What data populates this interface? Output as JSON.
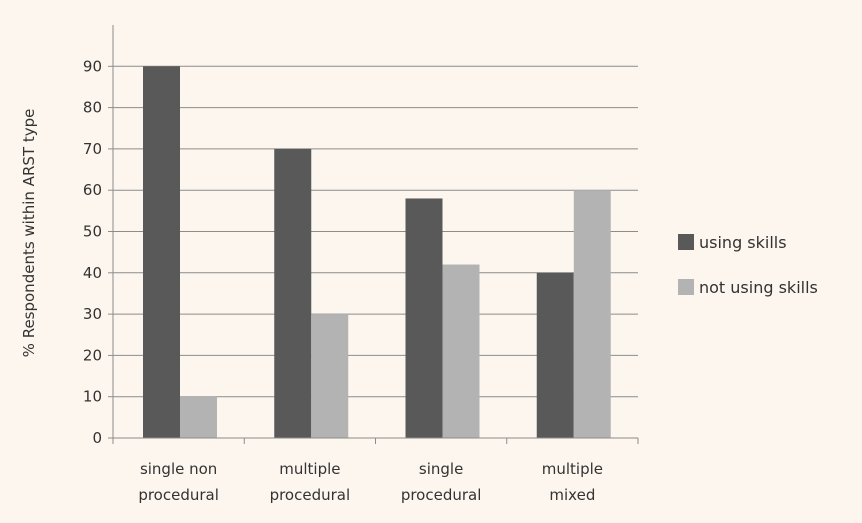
{
  "chart_data": {
    "type": "bar",
    "title": "",
    "ylabel": "% Respondents within ARST type",
    "xlabel": "",
    "ylim": [
      0,
      100
    ],
    "yticks": [
      0,
      10,
      20,
      30,
      40,
      50,
      60,
      70,
      80,
      90
    ],
    "grid": true,
    "legend_position": "right",
    "categories": [
      [
        "single non",
        "procedural"
      ],
      [
        "multiple",
        "procedural"
      ],
      [
        "single",
        "procedural"
      ],
      [
        "multiple",
        "mixed"
      ]
    ],
    "series": [
      {
        "name": "using skills",
        "color": "#595959",
        "values": [
          90,
          70,
          58,
          40
        ]
      },
      {
        "name": "not using skills",
        "color": "#b3b3b3",
        "values": [
          10,
          30,
          42,
          60
        ]
      }
    ]
  }
}
